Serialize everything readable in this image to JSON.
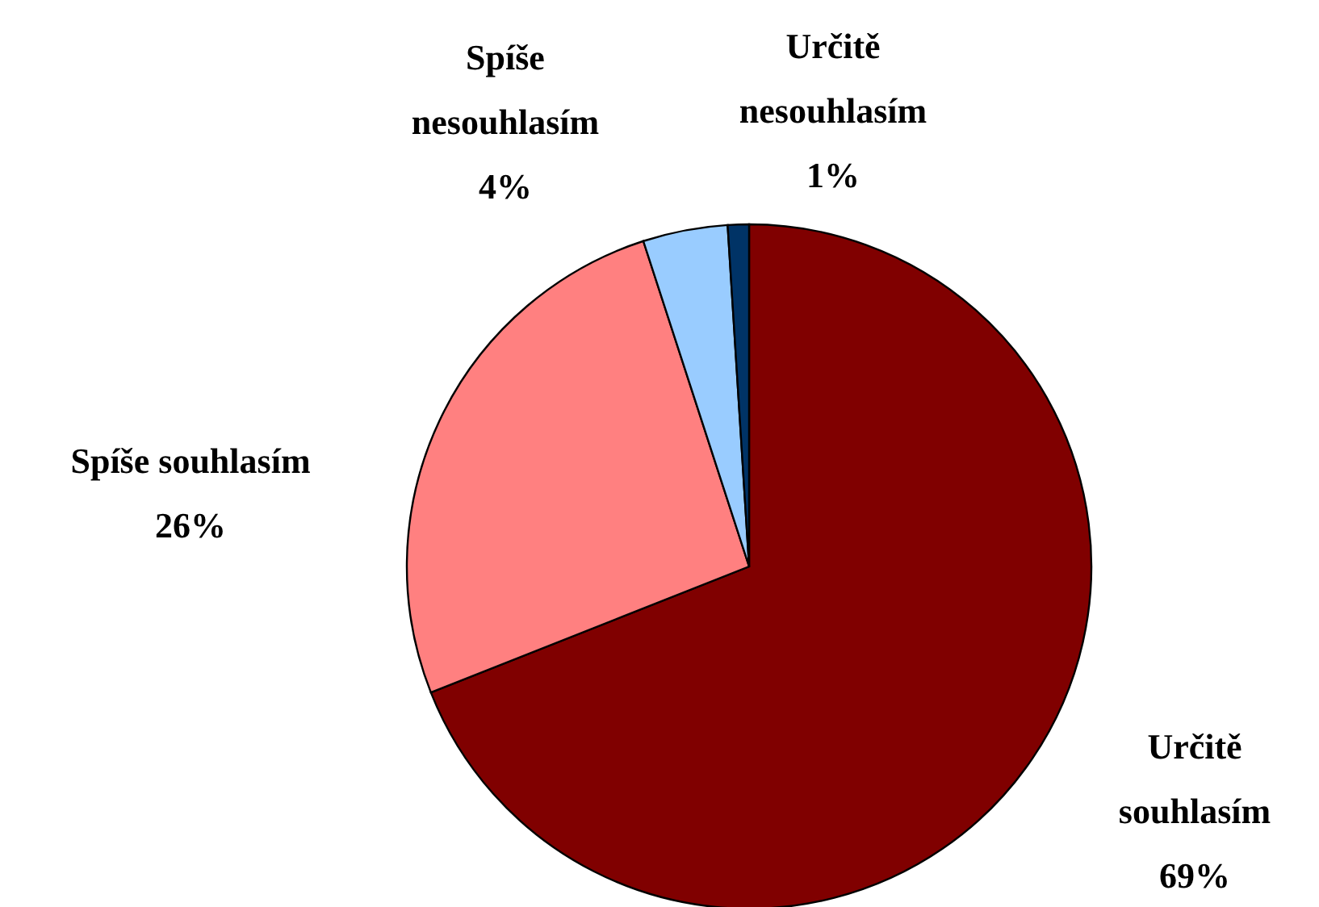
{
  "chart_data": {
    "type": "pie",
    "categories": [
      "Určitě souhlasím",
      "Spíše souhlasím",
      "Spíše nesouhlasím",
      "Určitě nesouhlasím"
    ],
    "values": [
      69,
      26,
      4,
      1
    ],
    "colors": [
      "#800000",
      "#ff8080",
      "#99ccff",
      "#003366"
    ],
    "value_labels": [
      "69%",
      "26%",
      "4%",
      "1%"
    ]
  }
}
